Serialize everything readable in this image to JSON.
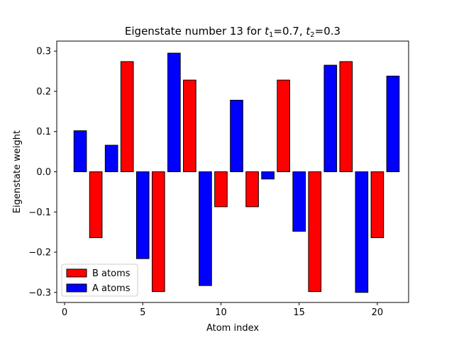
{
  "chart_data": {
    "type": "bar",
    "title": "Eigenstate number 13 for t1=0.7, t2=0.3",
    "title_parts": {
      "prefix": "Eigenstate number 13 for ",
      "t1_sym": "t",
      "t1_sub": "1",
      "t1_val": "=0.7, ",
      "t2_sym": "t",
      "t2_sub": "2",
      "t2_val": "=0.3"
    },
    "xlabel": "Atom index",
    "ylabel": "Eigenstate weight",
    "xlim": [
      -0.5,
      22.0
    ],
    "ylim": [
      -0.325,
      0.325
    ],
    "xticks": [
      0,
      5,
      10,
      15,
      20
    ],
    "yticks": [
      -0.3,
      -0.2,
      -0.1,
      0.0,
      0.1,
      0.2,
      0.3
    ],
    "ytick_labels": [
      "−0.3",
      "−0.2",
      "−0.1",
      "0.0",
      "0.1",
      "0.2",
      "0.3"
    ],
    "bar_width": 0.8,
    "colors": {
      "A atoms": "#0000ff",
      "B atoms": "#ff0000",
      "edge": "#000000"
    },
    "legend": {
      "placement": "lower-left",
      "entries": [
        "B atoms",
        "A atoms"
      ]
    },
    "series": [
      {
        "name": "A atoms",
        "x": [
          1,
          3,
          5,
          7,
          9,
          11,
          13,
          15,
          17,
          19,
          21
        ],
        "values": [
          0.102,
          0.066,
          -0.216,
          0.295,
          -0.283,
          0.178,
          -0.018,
          -0.148,
          0.265,
          -0.3,
          0.238
        ]
      },
      {
        "name": "B atoms",
        "x": [
          2,
          4,
          6,
          8,
          10,
          12,
          14,
          16,
          18,
          20
        ],
        "values": [
          -0.164,
          0.274,
          -0.298,
          0.228,
          -0.087,
          -0.087,
          0.228,
          -0.298,
          0.274,
          -0.164
        ]
      }
    ]
  }
}
